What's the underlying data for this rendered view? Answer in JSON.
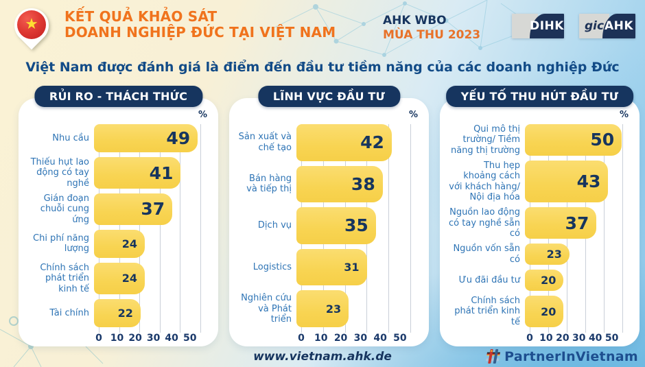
{
  "header": {
    "title_line1": "KẾT QUẢ KHẢO SÁT",
    "title_line2": "DOANH NGHIỆP ĐỨC TẠI VIỆT NAM",
    "survey_line1": "AHK WBO",
    "survey_line2": "MÙA THU 2023",
    "logo_dihk": "DIHK",
    "logo_gic_script": "gic",
    "logo_gic_ahk": "AHK"
  },
  "subtitle": "Việt Nam được đánh giá là điểm đến đầu tư tiềm năng của các doanh nghiệp Đức",
  "footer": {
    "website": "www.vietnam.ahk.de",
    "partner_label": "PartnerInVietnam"
  },
  "icons": {
    "vietnam-pin-icon": "map pin with Vietnam flag (red circle, yellow star)",
    "star-glyph": "★",
    "partner-hashtag-icon": "hashtag built from German and Vietnamese flag stripes",
    "percent-symbol": "%"
  },
  "colors": {
    "accent_orange": "#F0731D",
    "navy": "#16355F",
    "label_blue": "#2E74B5",
    "bar_yellow": "#F8D452",
    "background_cream": "#FAF2D5",
    "background_blue": "#8CC8EA"
  },
  "chart_data": [
    {
      "type": "bar",
      "orientation": "horizontal",
      "title": "RỦI RO - THÁCH THỨC",
      "unit": "%",
      "categories": [
        "Nhu cầu",
        "Thiếu hụt lao động có tay nghề",
        "Gián đoạn chuỗi cung ứng",
        "Chi phí năng lượng",
        "Chính sách phát triển kinh tế",
        "Tài chính"
      ],
      "values": [
        49,
        41,
        37,
        24,
        24,
        22
      ],
      "emphasized": [
        true,
        true,
        true,
        false,
        false,
        false
      ],
      "xlim": [
        0,
        50
      ],
      "xticks": [
        0,
        10,
        20,
        30,
        40,
        50
      ],
      "grid": true,
      "legend": false
    },
    {
      "type": "bar",
      "orientation": "horizontal",
      "title": "LĨNH VỰC ĐẦU TƯ",
      "unit": "%",
      "categories": [
        "Sản xuất và chế tạo",
        "Bán hàng và tiếp thị",
        "Dịch vụ",
        "Logistics",
        "Nghiên cứu và Phát triển"
      ],
      "values": [
        42,
        38,
        35,
        31,
        23
      ],
      "emphasized": [
        true,
        true,
        true,
        false,
        false
      ],
      "xlim": [
        0,
        50
      ],
      "xticks": [
        0,
        10,
        20,
        30,
        40,
        50
      ],
      "grid": true,
      "legend": false
    },
    {
      "type": "bar",
      "orientation": "horizontal",
      "title": "YẾU TỐ THU HÚT ĐẦU TƯ",
      "unit": "%",
      "categories": [
        "Qui mô thị trường/ Tiềm năng thị trường",
        "Thu hẹp khoảng cách với khách hàng/ Nội địa hóa",
        "Nguồn lao động có tay nghề sẵn có",
        "Nguồn vốn sẵn có",
        "Ưu đãi đầu tư",
        "Chính sách phát triển kinh tế"
      ],
      "values": [
        50,
        43,
        37,
        23,
        20,
        20
      ],
      "emphasized": [
        true,
        true,
        true,
        false,
        false,
        false
      ],
      "xlim": [
        0,
        50
      ],
      "xticks": [
        0,
        10,
        20,
        30,
        40,
        50
      ],
      "grid": true,
      "legend": false
    }
  ]
}
